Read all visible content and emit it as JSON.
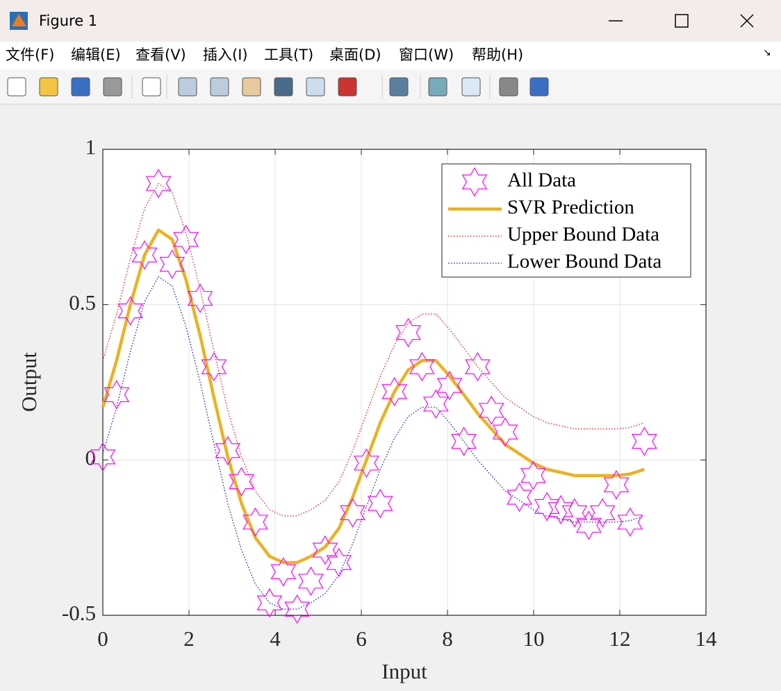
{
  "window": {
    "title": "Figure 1",
    "menu": [
      "文件(F)",
      "编辑(E)",
      "查看(V)",
      "插入(I)",
      "工具(T)",
      "桌面(D)",
      "窗口(W)",
      "帮助(H)"
    ]
  },
  "chart_data": {
    "type": "line",
    "x_label": "Input",
    "y_label": "Output",
    "x": [
      0,
      0.32,
      0.64,
      0.97,
      1.29,
      1.61,
      1.93,
      2.26,
      2.58,
      2.9,
      3.22,
      3.54,
      3.87,
      4.19,
      4.51,
      4.83,
      5.16,
      5.48,
      5.8,
      6.12,
      6.44,
      6.77,
      7.09,
      7.41,
      7.73,
      8.05,
      8.38,
      8.7,
      9.02,
      9.34,
      9.67,
      9.99,
      10.31,
      10.63,
      10.95,
      11.28,
      11.6,
      11.92,
      12.24,
      12.57
    ],
    "series": [
      {
        "name": "All Data",
        "color": "#ff00ff",
        "marker": "hexagram",
        "linestyle": "none",
        "values": [
          0.01,
          0.21,
          0.48,
          0.66,
          0.89,
          0.63,
          0.71,
          0.52,
          0.3,
          0.03,
          -0.07,
          -0.2,
          -0.46,
          -0.36,
          -0.48,
          -0.39,
          -0.29,
          -0.33,
          -0.17,
          -0.01,
          -0.14,
          0.22,
          0.41,
          0.3,
          0.18,
          0.24,
          0.06,
          0.3,
          0.16,
          0.09,
          -0.12,
          -0.05,
          -0.15,
          -0.16,
          -0.17,
          -0.21,
          -0.17,
          -0.08,
          -0.2,
          0.06
        ]
      },
      {
        "name": "SVR Prediction",
        "color": "#edb120",
        "marker": "none",
        "linestyle": "solid",
        "values": [
          0.17,
          0.32,
          0.5,
          0.66,
          0.74,
          0.71,
          0.58,
          0.4,
          0.2,
          0.01,
          -0.14,
          -0.25,
          -0.31,
          -0.33,
          -0.33,
          -0.31,
          -0.28,
          -0.22,
          -0.12,
          0.0,
          0.12,
          0.22,
          0.29,
          0.32,
          0.32,
          0.27,
          0.21,
          0.15,
          0.1,
          0.05,
          0.02,
          -0.01,
          -0.03,
          -0.04,
          -0.05,
          -0.05,
          -0.05,
          -0.05,
          -0.045,
          -0.03
        ]
      },
      {
        "name": "Upper Bound Data",
        "color": "#ff0000",
        "marker": "none",
        "linestyle": "dotted",
        "values": [
          0.32,
          0.47,
          0.65,
          0.81,
          0.89,
          0.86,
          0.73,
          0.55,
          0.35,
          0.16,
          0.01,
          -0.1,
          -0.16,
          -0.18,
          -0.18,
          -0.16,
          -0.13,
          -0.07,
          0.03,
          0.15,
          0.27,
          0.37,
          0.44,
          0.47,
          0.47,
          0.42,
          0.36,
          0.3,
          0.25,
          0.2,
          0.17,
          0.14,
          0.12,
          0.11,
          0.1,
          0.1,
          0.1,
          0.1,
          0.105,
          0.12
        ]
      },
      {
        "name": "Lower Bound Data",
        "color": "#0000ff",
        "marker": "none",
        "linestyle": "dotted",
        "values": [
          0.02,
          0.17,
          0.35,
          0.51,
          0.59,
          0.56,
          0.43,
          0.25,
          0.05,
          -0.14,
          -0.29,
          -0.4,
          -0.46,
          -0.48,
          -0.48,
          -0.46,
          -0.43,
          -0.37,
          -0.27,
          -0.15,
          -0.03,
          0.07,
          0.14,
          0.17,
          0.17,
          0.12,
          0.06,
          0.0,
          -0.05,
          -0.1,
          -0.13,
          -0.16,
          -0.18,
          -0.19,
          -0.2,
          -0.2,
          -0.2,
          -0.2,
          -0.195,
          -0.18
        ]
      }
    ],
    "xlim": [
      0,
      14
    ],
    "xticks": [
      0,
      2,
      4,
      6,
      8,
      10,
      12,
      14
    ],
    "ylim": [
      -0.5,
      1
    ],
    "yticks": [
      -0.5,
      0,
      0.5,
      1
    ],
    "grid": true,
    "legend": "upper-right"
  }
}
